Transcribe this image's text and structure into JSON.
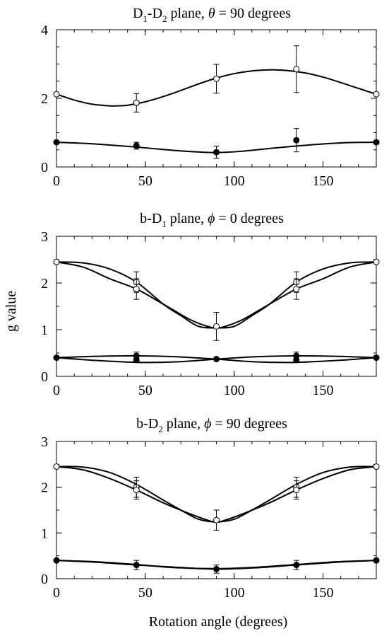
{
  "figure": {
    "shared_ylabel": "g value",
    "shared_xlabel": "Rotation angle (degrees)"
  },
  "chart_data": [
    {
      "type": "line",
      "title_parts": {
        "p1": "D",
        "s1": "1",
        "p2": "-D",
        "s2": "2",
        "p3": " plane, ",
        "sym": "θ",
        "p4": " = 90 degrees"
      },
      "xlim": [
        0,
        180
      ],
      "ylim": [
        0,
        4
      ],
      "xticks": [
        0,
        50,
        100,
        150
      ],
      "yticks": [
        0,
        2,
        4
      ],
      "xticklabels": [
        "0",
        "50",
        "100",
        "150"
      ],
      "yticklabels": [
        "0",
        "2",
        "4"
      ],
      "grid": false,
      "series": [
        {
          "marker": "open-circle",
          "x": [
            0,
            45,
            90,
            135,
            180
          ],
          "y": [
            2.12,
            1.87,
            2.57,
            2.85,
            2.12
          ],
          "yerr": [
            0,
            0.27,
            0.42,
            0.68,
            0
          ]
        },
        {
          "marker": "filled-circle",
          "x": [
            0,
            45,
            90,
            135,
            180
          ],
          "y": [
            0.72,
            0.62,
            0.43,
            0.78,
            0.72
          ],
          "yerr": [
            0,
            0.1,
            0.18,
            0.34,
            0
          ]
        }
      ],
      "curves": [
        {
          "x": [
            0,
            10,
            20,
            30,
            33,
            40,
            50,
            60,
            70,
            80,
            90,
            100,
            110,
            120,
            123,
            130,
            140,
            150,
            160,
            170,
            180
          ],
          "y": [
            2.12,
            1.95,
            1.83,
            1.78,
            1.78,
            1.8,
            1.9,
            2.05,
            2.23,
            2.42,
            2.59,
            2.72,
            2.8,
            2.83,
            2.83,
            2.81,
            2.74,
            2.62,
            2.46,
            2.29,
            2.12
          ]
        },
        {
          "x": [
            0,
            15,
            30,
            45,
            60,
            75,
            90,
            105,
            120,
            135,
            150,
            165,
            180
          ],
          "y": [
            0.72,
            0.69,
            0.64,
            0.58,
            0.51,
            0.45,
            0.42,
            0.46,
            0.54,
            0.61,
            0.67,
            0.71,
            0.72
          ]
        }
      ]
    },
    {
      "type": "line",
      "title_parts": {
        "p1": "b-D",
        "s1": "1",
        "p2": " plane, ",
        "sym": "ϕ",
        "p3": " = 0 degrees"
      },
      "xlim": [
        0,
        180
      ],
      "ylim": [
        0,
        3
      ],
      "xticks": [
        0,
        50,
        100,
        150
      ],
      "yticks": [
        0,
        1,
        2,
        3
      ],
      "xticklabels": [
        "0",
        "50",
        "100",
        "150"
      ],
      "yticklabels": [
        "0",
        "1",
        "2",
        "3"
      ],
      "grid": false,
      "series": [
        {
          "marker": "open-circle",
          "x": [
            0,
            45,
            45,
            90,
            135,
            135,
            180
          ],
          "y": [
            2.45,
            2.02,
            1.87,
            1.07,
            2.02,
            1.87,
            2.45
          ],
          "yerr": [
            0,
            0.22,
            0.22,
            0.3,
            0.22,
            0.22,
            0
          ]
        },
        {
          "marker": "filled-circle",
          "x": [
            0,
            45,
            45,
            90,
            135,
            135,
            180
          ],
          "y": [
            0.4,
            0.44,
            0.35,
            0.37,
            0.44,
            0.35,
            0.4
          ],
          "yerr": [
            0,
            0.08,
            0.04,
            0.02,
            0.08,
            0.04,
            0
          ]
        }
      ],
      "curves": [
        {
          "x": [
            0,
            15,
            30,
            45,
            60,
            75,
            85,
            90,
            100,
            110,
            120,
            135,
            150,
            165,
            180
          ],
          "y": [
            2.45,
            2.34,
            2.09,
            1.87,
            1.55,
            1.22,
            1.07,
            1.04,
            1.07,
            1.3,
            1.55,
            2.02,
            2.3,
            2.43,
            2.45
          ]
        },
        {
          "x": [
            0,
            15,
            30,
            45,
            60,
            70,
            80,
            90,
            95,
            105,
            120,
            135,
            150,
            165,
            180
          ],
          "y": [
            2.45,
            2.43,
            2.3,
            2.02,
            1.55,
            1.3,
            1.07,
            1.04,
            1.07,
            1.22,
            1.55,
            1.87,
            2.09,
            2.34,
            2.45
          ]
        },
        {
          "x": [
            0,
            22.5,
            45,
            67.5,
            90,
            112.5,
            135,
            157.5,
            180
          ],
          "y": [
            0.4,
            0.43,
            0.44,
            0.42,
            0.37,
            0.31,
            0.3,
            0.34,
            0.4
          ]
        },
        {
          "x": [
            0,
            22.5,
            45,
            67.5,
            90,
            112.5,
            135,
            157.5,
            180
          ],
          "y": [
            0.4,
            0.34,
            0.3,
            0.31,
            0.37,
            0.42,
            0.44,
            0.43,
            0.4
          ]
        }
      ]
    },
    {
      "type": "line",
      "title_parts": {
        "p1": "b-D",
        "s1": "2",
        "p2": " plane, ",
        "sym": "ϕ",
        "p3": " = 90 degrees"
      },
      "xlim": [
        0,
        180
      ],
      "ylim": [
        0,
        3
      ],
      "xticks": [
        0,
        50,
        100,
        150
      ],
      "yticks": [
        0,
        1,
        2,
        3
      ],
      "xticklabels": [
        "0",
        "50",
        "100",
        "150"
      ],
      "yticklabels": [
        "0",
        "1",
        "2",
        "3"
      ],
      "grid": false,
      "series": [
        {
          "marker": "open-circle",
          "x": [
            0,
            45,
            45,
            90,
            135,
            135,
            180
          ],
          "y": [
            2.45,
            2.0,
            1.94,
            1.28,
            2.0,
            1.94,
            2.45
          ],
          "yerr": [
            0,
            0.22,
            0.2,
            0.22,
            0.22,
            0.2,
            0
          ]
        },
        {
          "marker": "filled-circle",
          "x": [
            0,
            45,
            90,
            135,
            180
          ],
          "y": [
            0.4,
            0.3,
            0.21,
            0.3,
            0.4
          ],
          "yerr": [
            0,
            0.1,
            0.09,
            0.1,
            0
          ]
        }
      ],
      "curves": [
        {
          "x": [
            0,
            15,
            30,
            45,
            60,
            75,
            85,
            90,
            100,
            110,
            120,
            135,
            150,
            165,
            180
          ],
          "y": [
            2.45,
            2.38,
            2.19,
            1.94,
            1.66,
            1.42,
            1.28,
            1.24,
            1.3,
            1.5,
            1.72,
            2.06,
            2.32,
            2.44,
            2.45
          ]
        },
        {
          "x": [
            0,
            15,
            30,
            45,
            60,
            70,
            80,
            90,
            95,
            105,
            120,
            135,
            150,
            165,
            180
          ],
          "y": [
            2.45,
            2.44,
            2.32,
            2.06,
            1.72,
            1.5,
            1.3,
            1.24,
            1.28,
            1.42,
            1.66,
            1.94,
            2.19,
            2.38,
            2.45
          ]
        },
        {
          "x": [
            0,
            22.5,
            45,
            67.5,
            90,
            112.5,
            135,
            157.5,
            180
          ],
          "y": [
            0.4,
            0.36,
            0.3,
            0.25,
            0.21,
            0.24,
            0.3,
            0.36,
            0.4
          ]
        },
        {
          "x": [
            0,
            22.5,
            45,
            67.5,
            90,
            112.5,
            135,
            157.5,
            180
          ],
          "y": [
            0.4,
            0.37,
            0.31,
            0.24,
            0.22,
            0.25,
            0.31,
            0.37,
            0.4
          ]
        }
      ]
    }
  ]
}
